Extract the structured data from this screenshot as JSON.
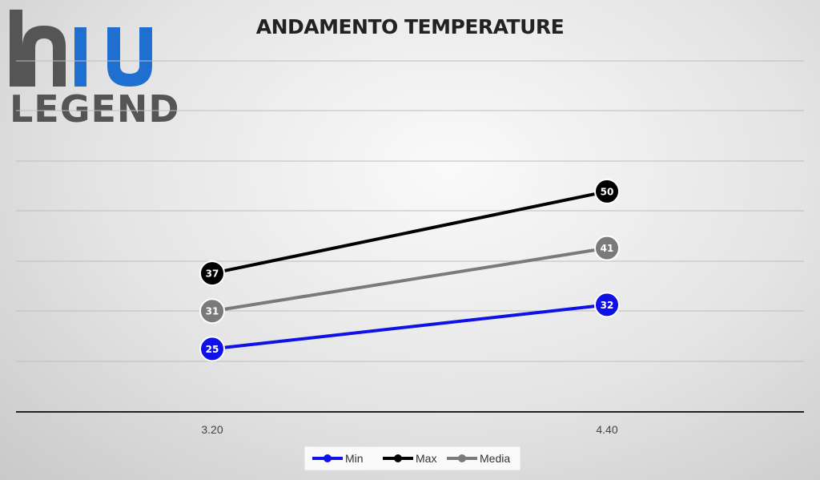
{
  "logo": {
    "text": "LEGEND"
  },
  "chart_data": {
    "type": "line",
    "title": "ANDAMENTO TEMPERATURE",
    "categories": [
      "3.20",
      "4.40"
    ],
    "series": [
      {
        "name": "Min",
        "values": [
          25,
          32
        ],
        "color": "#1010e8"
      },
      {
        "name": "Max",
        "values": [
          37,
          50
        ],
        "color": "#000000"
      },
      {
        "name": "Media",
        "values": [
          31,
          41
        ],
        "color": "#7a7a7a"
      }
    ],
    "data_labels": true,
    "grid": true,
    "legend": "bottom"
  }
}
